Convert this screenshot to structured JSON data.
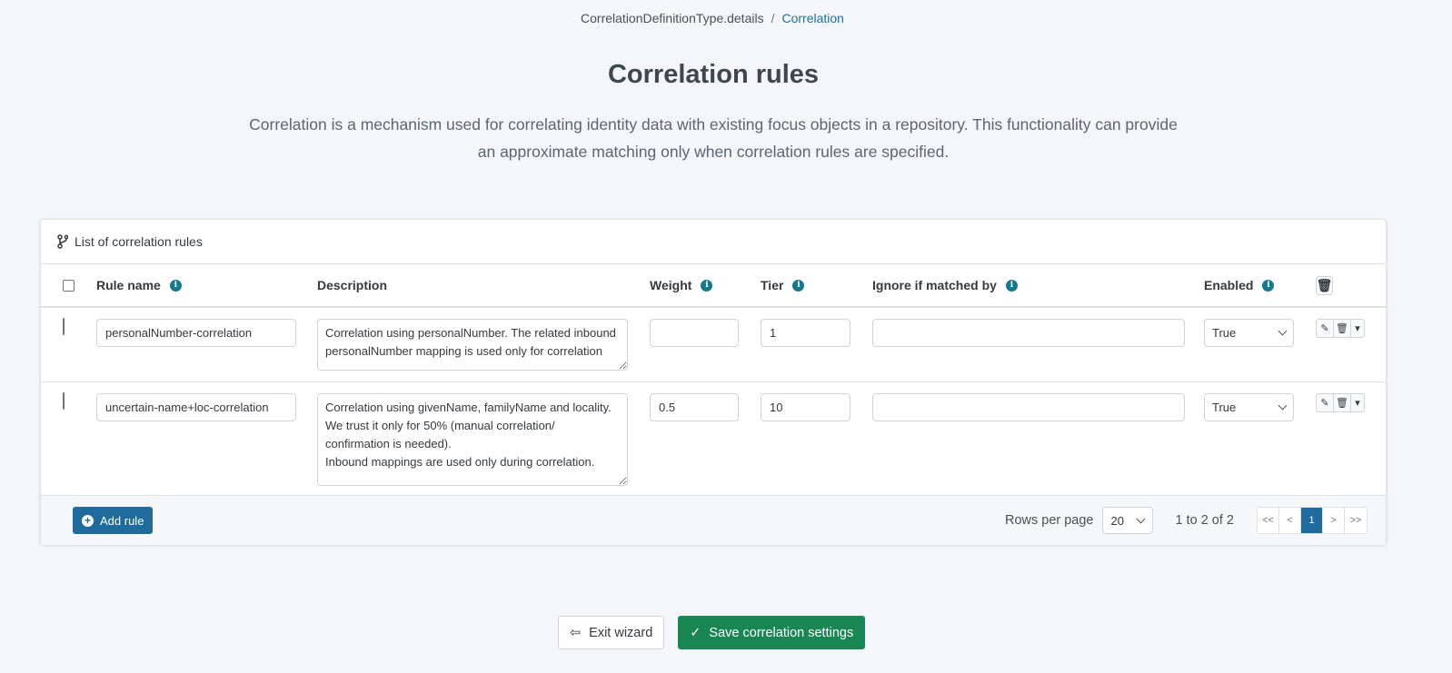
{
  "breadcrumb": {
    "parent": "CorrelationDefinitionType.details",
    "current": "Correlation"
  },
  "title": "Correlation rules",
  "intro": "Correlation is a mechanism used for correlating identity data with existing focus objects in a repository. This functionality can provide an approximate matching only when correlation rules are specified.",
  "card": {
    "title": "List of correlation rules",
    "icon": "code-branch-icon"
  },
  "columns": {
    "rule_name": "Rule name",
    "description": "Description",
    "weight": "Weight",
    "tier": "Tier",
    "ignore": "Ignore if matched by",
    "enabled": "Enabled"
  },
  "rows": [
    {
      "name": "personalNumber-correlation",
      "description": "Correlation using personalNumber. The related inbound personalNumber mapping is used only for correlation",
      "weight": "",
      "tier": "1",
      "ignore": "",
      "enabled": "True"
    },
    {
      "name": "uncertain-name+loc-correlation",
      "description": "Correlation using givenName, familyName and locality.\nWe trust it only for 50% (manual correlation/ confirmation is needed).\nInbound mappings are used only during correlation.",
      "weight": "0.5",
      "tier": "10",
      "ignore": "",
      "enabled": "True"
    }
  ],
  "footer": {
    "add_rule": "Add rule",
    "rows_per_page_label": "Rows per page",
    "rows_per_page": "20",
    "count": "1 to 2 of 2",
    "pages": {
      "first": "<<",
      "prev": "<",
      "current": "1",
      "next": ">",
      "last": ">>"
    }
  },
  "actions": {
    "exit": "Exit wizard",
    "save": "Save correlation settings"
  },
  "colors": {
    "accent": "#1f6c9c",
    "save": "#198754",
    "info": "#137a8e"
  }
}
